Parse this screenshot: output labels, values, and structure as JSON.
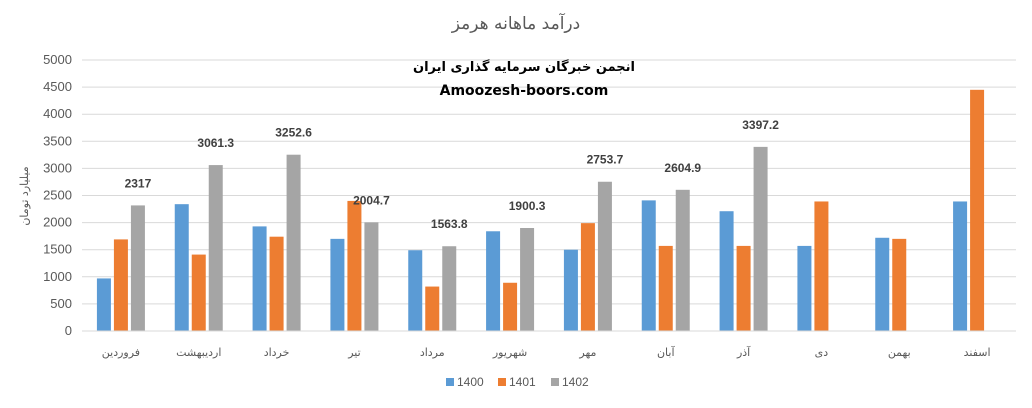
{
  "chart_data": {
    "type": "bar",
    "title": "درآمد ماهانه هرمز",
    "watermark_line1": "انجمن خبرگان سرمایه گذاری ایران",
    "watermark_line2": "Amoozesh-boors.com",
    "ylabel": "میلیارد تومان",
    "xlabel": "",
    "ylim": [
      0,
      5000
    ],
    "yticks": [
      0,
      500,
      1000,
      1500,
      2000,
      2500,
      3000,
      3500,
      4000,
      4500,
      5000
    ],
    "grid": true,
    "legend_position": "bottom",
    "categories": [
      "فروردین",
      "اردیبهشت",
      "خرداد",
      "تیر",
      "مرداد",
      "شهریور",
      "مهر",
      "آبان",
      "آذر",
      "دی",
      "بهمن",
      "اسفند"
    ],
    "series": [
      {
        "name": "1400",
        "color": "#5b9bd5",
        "values": [
          970,
          2340,
          1930,
          1700,
          1490,
          1840,
          1500,
          2410,
          2210,
          1570,
          1720,
          2390
        ]
      },
      {
        "name": "1401",
        "color": "#ed7d31",
        "values": [
          1690,
          1410,
          1740,
          2400,
          820,
          890,
          1990,
          1570,
          1570,
          2390,
          1700,
          4450
        ]
      },
      {
        "name": "1402",
        "color": "#a5a5a5",
        "values": [
          2317,
          3061.3,
          3252.6,
          2004.7,
          1563.8,
          1900.3,
          2753.7,
          2604.9,
          3397.2,
          null,
          null,
          null
        ]
      }
    ],
    "data_labels": [
      "2317",
      "3061.3",
      "3252.6",
      "2004.7",
      "1563.8",
      "1900.3",
      "2753.7",
      "2604.9",
      "3397.2"
    ]
  }
}
